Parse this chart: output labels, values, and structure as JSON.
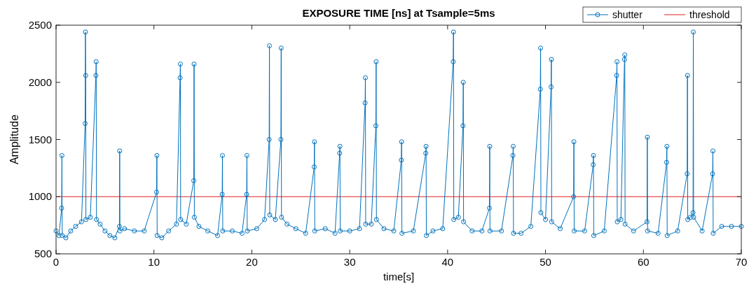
{
  "chart_data": {
    "type": "line",
    "title": "EXPOSURE TIME [ns] at Tsample=5ms",
    "xlabel": "time[s]",
    "ylabel": "Amplitude",
    "x": [
      0,
      0.3,
      0.57,
      0.6,
      0.63,
      1.0,
      1.5,
      2.0,
      2.6,
      2.97,
      3.0,
      3.03,
      3.05,
      3.5,
      4.07,
      4.1,
      4.13,
      4.5,
      5.0,
      5.5,
      6.0,
      6.47,
      6.5,
      6.53,
      7.0,
      8.0,
      9.0,
      10.27,
      10.3,
      10.33,
      10.8,
      11.5,
      12.3,
      12.67,
      12.7,
      12.73,
      13.3,
      14.07,
      14.1,
      14.13,
      14.6,
      15.5,
      16.5,
      16.97,
      17.0,
      17.03,
      18.0,
      19.0,
      19.47,
      19.5,
      19.53,
      20.5,
      21.3,
      21.77,
      21.8,
      21.83,
      22.4,
      22.97,
      23.0,
      23.03,
      23.6,
      24.5,
      25.5,
      26.37,
      26.4,
      26.43,
      27.5,
      28.5,
      28.97,
      29.0,
      29.03,
      30.0,
      31.0,
      31.57,
      31.6,
      31.63,
      32.2,
      32.67,
      32.7,
      32.73,
      33.5,
      34.5,
      35.27,
      35.3,
      35.33,
      36.5,
      37.77,
      37.8,
      37.83,
      38.5,
      39.5,
      40.57,
      40.6,
      40.63,
      41.1,
      41.57,
      41.6,
      41.63,
      42.5,
      43.5,
      44.27,
      44.3,
      44.33,
      45.5,
      46.67,
      46.7,
      46.73,
      47.5,
      48.5,
      49.47,
      49.5,
      49.53,
      50.0,
      50.57,
      50.6,
      50.63,
      51.5,
      52.87,
      52.9,
      52.93,
      54.0,
      54.87,
      54.9,
      54.93,
      56.0,
      57.27,
      57.3,
      57.33,
      57.7,
      58.07,
      58.1,
      58.13,
      59.0,
      60.37,
      60.4,
      60.43,
      61.5,
      62.37,
      62.4,
      62.43,
      63.5,
      64.47,
      64.5,
      64.53,
      64.8,
      65.07,
      65.1,
      65.13,
      66.0,
      67.07,
      67.1,
      67.13,
      68.0,
      69.0,
      70.0
    ],
    "series": [
      {
        "name": "shutter",
        "color": "#0072bd",
        "marker": "circle",
        "values": [
          700,
          660,
          900,
          1360,
          660,
          640,
          700,
          740,
          780,
          1640,
          2440,
          2060,
          800,
          820,
          2060,
          2180,
          800,
          760,
          700,
          660,
          640,
          740,
          1400,
          700,
          720,
          700,
          700,
          1040,
          1360,
          660,
          640,
          700,
          760,
          2040,
          2160,
          800,
          760,
          1140,
          2160,
          820,
          740,
          700,
          660,
          1020,
          1360,
          700,
          700,
          680,
          1020,
          1360,
          700,
          720,
          800,
          1500,
          2320,
          840,
          800,
          1500,
          2300,
          820,
          760,
          720,
          680,
          1260,
          1480,
          700,
          720,
          680,
          1380,
          1440,
          700,
          700,
          720,
          1820,
          2040,
          760,
          760,
          1620,
          2180,
          800,
          720,
          700,
          1320,
          1480,
          680,
          700,
          1380,
          1440,
          660,
          700,
          720,
          2180,
          2440,
          800,
          820,
          1620,
          2000,
          780,
          700,
          700,
          900,
          1440,
          700,
          700,
          1360,
          1440,
          680,
          680,
          740,
          1940,
          2300,
          860,
          800,
          1960,
          2200,
          780,
          720,
          1000,
          1480,
          700,
          700,
          1280,
          1360,
          660,
          700,
          2060,
          2180,
          780,
          800,
          2200,
          2240,
          760,
          700,
          780,
          1520,
          700,
          680,
          1300,
          1440,
          660,
          700,
          1200,
          2060,
          800,
          820,
          860,
          2440,
          820,
          700,
          1200,
          1400,
          680,
          740,
          740,
          740
        ]
      }
    ],
    "ref_lines": [
      {
        "axis": "y",
        "value": 1000,
        "label": "threshold",
        "color": "#e02020"
      }
    ],
    "xlim": [
      0,
      70
    ],
    "xticks": [
      0,
      10,
      20,
      30,
      40,
      50,
      60,
      70
    ],
    "ylim": [
      500,
      2500
    ],
    "yticks": [
      500,
      1000,
      1500,
      2000,
      2500
    ],
    "grid": false,
    "legend": "top right"
  }
}
